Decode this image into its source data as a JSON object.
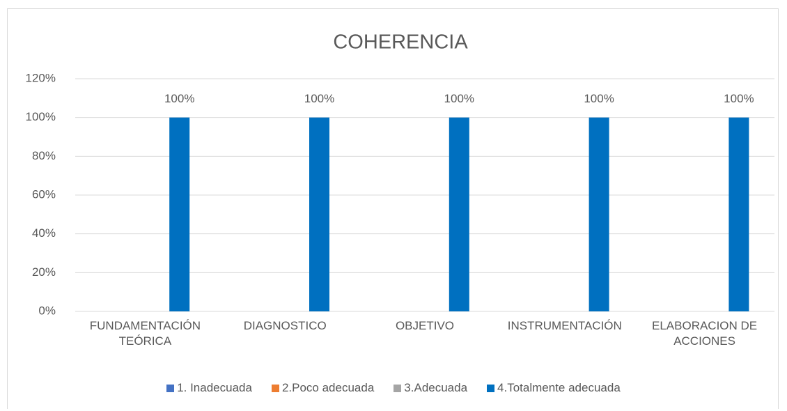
{
  "chart_data": {
    "type": "bar",
    "title": "COHERENCIA",
    "categories": [
      "FUNDAMENTACIÓN TEÓRICA",
      "DIAGNOSTICO",
      "OBJETIVO",
      "INSTRUMENTACIÓN",
      "ELABORACION DE ACCIONES"
    ],
    "series": [
      {
        "name": "1. Inadecuada",
        "color": "#4472c4",
        "values": [
          0,
          0,
          0,
          0,
          0
        ]
      },
      {
        "name": "2.Poco adecuada",
        "color": "#ed7d31",
        "values": [
          0,
          0,
          0,
          0,
          0
        ]
      },
      {
        "name": "3.Adecuada",
        "color": "#a5a5a5",
        "values": [
          0,
          0,
          0,
          0,
          0
        ]
      },
      {
        "name": "4.Totalmente  adecuada",
        "color": "#0070c0",
        "values": [
          100,
          100,
          100,
          100,
          100
        ],
        "value_labels": [
          "100%",
          "100%",
          "100%",
          "100%",
          "100%"
        ]
      }
    ],
    "ylim": [
      0,
      120
    ],
    "yticks": [
      {
        "value": 0,
        "label": "0%"
      },
      {
        "value": 20,
        "label": "20%"
      },
      {
        "value": 40,
        "label": "40%"
      },
      {
        "value": 60,
        "label": "60%"
      },
      {
        "value": 80,
        "label": "80%"
      },
      {
        "value": 100,
        "label": "100%"
      },
      {
        "value": 120,
        "label": "120%"
      }
    ],
    "grid": true,
    "legend": "bottom"
  }
}
